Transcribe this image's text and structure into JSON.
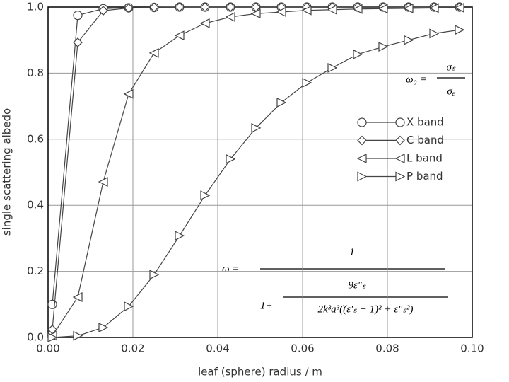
{
  "chart_data": {
    "type": "line",
    "x_label": "leaf (sphere) radius / m",
    "y_label": "single scattering albedo",
    "x": [
      0.001,
      0.007,
      0.013,
      0.019,
      0.025,
      0.031,
      0.037,
      0.043,
      0.049,
      0.055,
      0.061,
      0.067,
      0.073,
      0.079,
      0.085,
      0.091,
      0.097
    ],
    "series": [
      {
        "name": "X band",
        "marker": "circle",
        "color": "#444444",
        "values": [
          0.1,
          0.975,
          0.995,
          0.998,
          0.999,
          1.0,
          1.0,
          1.0,
          1.0,
          1.0,
          1.0,
          1.0,
          1.0,
          1.0,
          1.0,
          1.0,
          1.0
        ]
      },
      {
        "name": "C band",
        "marker": "diamond",
        "color": "#444444",
        "values": [
          0.024,
          0.893,
          0.989,
          0.997,
          0.999,
          1.0,
          1.0,
          1.0,
          1.0,
          1.0,
          1.0,
          1.0,
          1.0,
          1.0,
          1.0,
          1.0,
          1.0
        ]
      },
      {
        "name": "L band",
        "marker": "triangle-left",
        "color": "#444444",
        "values": [
          0.005,
          0.122,
          0.471,
          0.737,
          0.861,
          0.914,
          0.951,
          0.97,
          0.98,
          0.985,
          0.99,
          0.992,
          0.994,
          0.995,
          0.996,
          0.997,
          0.998
        ]
      },
      {
        "name": "P band",
        "marker": "triangle-right",
        "color": "#444444",
        "values": [
          0.0,
          0.005,
          0.03,
          0.094,
          0.19,
          0.308,
          0.43,
          0.54,
          0.634,
          0.711,
          0.771,
          0.816,
          0.857,
          0.88,
          0.9,
          0.92,
          0.931
        ]
      }
    ],
    "xlim": [
      0,
      0.1
    ],
    "ylim": [
      0,
      1
    ],
    "xticks": [
      {
        "value": 0,
        "label": "0.00"
      },
      {
        "value": 0.02,
        "label": "0.02"
      },
      {
        "value": 0.04,
        "label": "0.04"
      },
      {
        "value": 0.06,
        "label": "0.06"
      },
      {
        "value": 0.08,
        "label": "0.08"
      },
      {
        "value": 0.1,
        "label": "0.10"
      }
    ],
    "yticks": [
      {
        "value": 0,
        "label": "0.0"
      },
      {
        "value": 0.2,
        "label": "0.2"
      },
      {
        "value": 0.4,
        "label": "0.4"
      },
      {
        "value": 0.6,
        "label": "0.6"
      },
      {
        "value": 0.8,
        "label": "0.8"
      },
      {
        "value": 1,
        "label": "1.0"
      }
    ],
    "grid": true,
    "legend": "right",
    "annotations": {
      "albedo_definition": {
        "lhs": "ω₀ =",
        "numerator": "σₛ",
        "denominator": "σₑ"
      },
      "albedo_formula": {
        "lhs": "ω =",
        "numerator": "1",
        "denominator_lead": "1+",
        "inner_numerator": "9ε″ₛ",
        "inner_denominator": "2k³a³((ε′ₛ − 1)² + ε″ₛ²)"
      }
    }
  }
}
